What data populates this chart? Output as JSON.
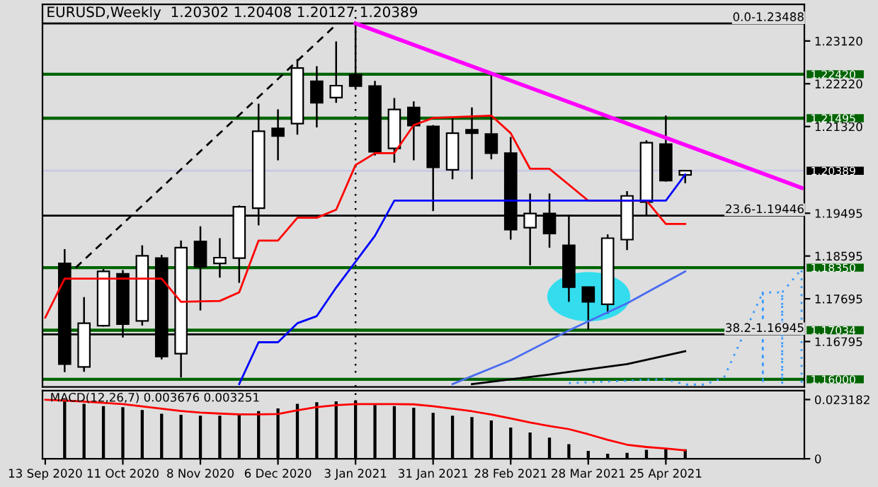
{
  "chart_data": [
    {
      "type": "candlestick",
      "title": "EURUSD,Weekly  1.20302 1.20408 1.20127 1.20389",
      "x": [
        "2020-09-20",
        "2020-09-27",
        "2020-10-04",
        "2020-10-11",
        "2020-10-18",
        "2020-10-25",
        "2020-11-01",
        "2020-11-08",
        "2020-11-15",
        "2020-11-22",
        "2020-11-29",
        "2020-12-06",
        "2020-12-13",
        "2020-12-20",
        "2020-12-27",
        "2021-01-03",
        "2021-01-10",
        "2021-01-17",
        "2021-01-24",
        "2021-01-31",
        "2021-02-07",
        "2021-02-14",
        "2021-02-21",
        "2021-02-28",
        "2021-03-07",
        "2021-03-14",
        "2021-03-21",
        "2021-03-28",
        "2021-04-04",
        "2021-04-11",
        "2021-04-18",
        "2021-04-25",
        "2021-05-02"
      ],
      "ohlc": [
        [
          1.1844,
          1.1874,
          1.1615,
          1.1632
        ],
        [
          1.1626,
          1.1773,
          1.1616,
          1.1718
        ],
        [
          1.1713,
          1.1832,
          1.1711,
          1.1827
        ],
        [
          1.1822,
          1.183,
          1.1688,
          1.1716
        ],
        [
          1.1723,
          1.1882,
          1.1713,
          1.186
        ],
        [
          1.1855,
          1.1862,
          1.1642,
          1.1648
        ],
        [
          1.1654,
          1.1892,
          1.1604,
          1.1877
        ],
        [
          1.189,
          1.1922,
          1.1745,
          1.1837
        ],
        [
          1.1844,
          1.1897,
          1.1814,
          1.1856
        ],
        [
          1.1855,
          1.1966,
          1.1803,
          1.1963
        ],
        [
          1.196,
          1.218,
          1.1924,
          1.2122
        ],
        [
          1.2128,
          1.2168,
          1.2061,
          1.2112
        ],
        [
          1.2138,
          1.2274,
          1.2115,
          1.2255
        ],
        [
          1.2227,
          1.2259,
          1.213,
          1.2182
        ],
        [
          1.2193,
          1.2311,
          1.2182,
          1.2218
        ],
        [
          1.2241,
          1.2349,
          1.221,
          1.2217
        ],
        [
          1.2217,
          1.2228,
          1.2071,
          1.2079
        ],
        [
          1.2086,
          1.2192,
          1.2056,
          1.2168
        ],
        [
          1.2172,
          1.2185,
          1.2061,
          1.2134
        ],
        [
          1.2132,
          1.2135,
          1.1954,
          1.2046
        ],
        [
          1.2041,
          1.2152,
          1.2021,
          1.2118
        ],
        [
          1.2125,
          1.2172,
          1.2021,
          1.2118
        ],
        [
          1.2116,
          1.2243,
          1.2063,
          1.2076
        ],
        [
          1.2076,
          1.211,
          1.1894,
          1.1915
        ],
        [
          1.1919,
          1.1991,
          1.184,
          1.1949
        ],
        [
          1.1949,
          1.1991,
          1.1877,
          1.1907
        ],
        [
          1.1882,
          1.1946,
          1.1763,
          1.1794
        ],
        [
          1.1794,
          1.1795,
          1.1704,
          1.1763
        ],
        [
          1.1758,
          1.1905,
          1.1738,
          1.1897
        ],
        [
          1.1894,
          1.1996,
          1.1872,
          1.1986
        ],
        [
          1.1973,
          1.2103,
          1.1944,
          1.2098
        ],
        [
          1.2095,
          1.2155,
          1.2016,
          1.2018
        ],
        [
          1.20302,
          1.20408,
          1.20127,
          1.20389
        ]
      ],
      "series": [
        {
          "type": "line",
          "color": "#ff0000",
          "x": [
            "2020-09-13",
            "2020-09-20",
            "2020-10-25",
            "2020-11-01",
            "2020-11-15",
            "2020-11-22",
            "2020-11-29",
            "2020-12-06",
            "2020-12-13",
            "2020-12-20",
            "2020-12-27",
            "2021-01-03",
            "2021-01-10",
            "2021-01-17",
            "2021-01-24",
            "2021-01-31",
            "2021-02-21",
            "2021-02-28",
            "2021-03-07",
            "2021-03-14",
            "2021-03-28",
            "2021-04-18",
            "2021-04-25",
            "2021-05-02"
          ],
          "values": [
            1.173,
            1.1812,
            1.1812,
            1.1763,
            1.1765,
            1.1783,
            1.1892,
            1.1892,
            1.194,
            1.194,
            1.1957,
            1.2051,
            1.2076,
            1.2076,
            1.2135,
            1.215,
            1.2155,
            1.2118,
            1.2043,
            1.2043,
            1.1976,
            1.1976,
            1.1927,
            1.1927
          ]
        },
        {
          "type": "line",
          "color": "#0000ff",
          "x": [
            "2020-11-22",
            "2020-11-29",
            "2020-12-06",
            "2020-12-13",
            "2020-12-20",
            "2020-12-27",
            "2021-01-10",
            "2021-01-17",
            "2021-04-25",
            "2021-05-02"
          ],
          "values": [
            1.159,
            1.1678,
            1.1678,
            1.1718,
            1.1733,
            1.1793,
            1.1902,
            1.1976,
            1.1976,
            1.2031
          ]
        },
        {
          "type": "line",
          "color": "#4a6cf0",
          "x": [
            "2021-02-07",
            "2021-02-28",
            "2021-03-21",
            "2021-04-11",
            "2021-05-02"
          ],
          "values": [
            1.159,
            1.164,
            1.1703,
            1.176,
            1.1827
          ]
        },
        {
          "type": "line",
          "color": "#000000",
          "x": [
            "2021-02-14",
            "2021-03-14",
            "2021-04-11",
            "2021-05-02"
          ],
          "values": [
            1.159,
            1.161,
            1.1632,
            1.1659
          ]
        },
        {
          "type": "line",
          "color": "#3399ff",
          "line_style": "dotted",
          "x": [
            "2021-03-21",
            "2021-04-18",
            "2021-04-25",
            "2021-05-02",
            "2021-05-09",
            "2021-05-16",
            "2021-05-23",
            "2021-05-30",
            "2021-05-30",
            "2021-05-30",
            "2021-06-06",
            "2021-06-06",
            "2021-06-06",
            "2021-06-13",
            "2021-06-13"
          ],
          "values": [
            1.1592,
            1.1599,
            1.16,
            1.1589,
            1.1589,
            1.1604,
            1.1693,
            1.1783,
            1.159,
            1.1783,
            1.1783,
            1.159,
            1.1783,
            1.1832,
            1.159
          ]
        },
        {
          "type": "line",
          "color": "#ff00ff",
          "x": [
            "2021-01-03",
            "2021-06-13"
          ],
          "values": [
            1.2349,
            1.2003
          ]
        },
        {
          "type": "line",
          "color": "#000000",
          "line_style": "dashed",
          "x": [
            "2020-09-24",
            "2020-12-26"
          ],
          "values": [
            1.1835,
            1.2341
          ]
        }
      ],
      "xlim": [
        "2020-09-12",
        "2021-06-14"
      ],
      "ylim": [
        1.1584,
        1.2389
      ],
      "yticks": [
        {
          "value": 1.2312,
          "label": "1.23120"
        },
        {
          "value": 1.2222,
          "label": "1.22220"
        },
        {
          "value": 1.2132,
          "label": "1.21320"
        },
        {
          "value": 1.19495,
          "label": "1.19495"
        },
        {
          "value": 1.18595,
          "label": "1.18595"
        },
        {
          "value": 1.17695,
          "label": "1.17695"
        },
        {
          "value": 1.16795,
          "label": "1.16795"
        }
      ],
      "tick_labels": "y",
      "ref_lines": [
        {
          "axis": "x",
          "value": "2021-01-03",
          "color": "#000000",
          "line_style": "dotted"
        },
        {
          "axis": "y",
          "value": 1.2242,
          "label": "1.22420",
          "color": "#006400"
        },
        {
          "axis": "y",
          "value": 1.21495,
          "label": "1.21495",
          "color": "#006400"
        },
        {
          "axis": "y",
          "value": 1.1835,
          "label": "1.18350",
          "color": "#006400"
        },
        {
          "axis": "y",
          "value": 1.17034,
          "label": "1.17034",
          "color": "#006400"
        },
        {
          "axis": "y",
          "value": 1.16,
          "label": "1.16000",
          "color": "#006400"
        },
        {
          "axis": "y",
          "value": 1.20389,
          "label": "1.20389",
          "color": "#c8c8e6"
        },
        {
          "axis": "y",
          "value": 1.23488,
          "color": "#000000"
        },
        {
          "axis": "y",
          "value": 1.19446,
          "color": "#000000"
        },
        {
          "axis": "y",
          "value": 1.16945,
          "color": "#000000"
        }
      ],
      "annotations": [
        "0.0-1.23488",
        "23.6-1.19446",
        "38.2-1.16945"
      ]
    },
    {
      "type": "bar",
      "title": "MACD(12,26,7) 0.003676 0.003251",
      "series": [
        {
          "type": "bar",
          "color": "#000000",
          "x": [
            "2020-09-20",
            "2020-09-27",
            "2020-10-04",
            "2020-10-11",
            "2020-10-18",
            "2020-10-25",
            "2020-11-01",
            "2020-11-08",
            "2020-11-15",
            "2020-11-22",
            "2020-11-29",
            "2020-12-06",
            "2020-12-13",
            "2020-12-20",
            "2020-12-27",
            "2021-01-03",
            "2021-01-10",
            "2021-01-17",
            "2021-01-24",
            "2021-01-31",
            "2021-02-07",
            "2021-02-14",
            "2021-02-21",
            "2021-02-28",
            "2021-03-07",
            "2021-03-14",
            "2021-03-21",
            "2021-03-28",
            "2021-04-04",
            "2021-04-11",
            "2021-04-18",
            "2021-04-25",
            "2021-05-02"
          ],
          "values": [
            0.0225,
            0.0215,
            0.0206,
            0.0202,
            0.0191,
            0.0176,
            0.0172,
            0.0169,
            0.0169,
            0.0176,
            0.0187,
            0.0197,
            0.0215,
            0.0221,
            0.0225,
            0.0228,
            0.021,
            0.0206,
            0.02,
            0.018,
            0.0169,
            0.0163,
            0.015,
            0.0122,
            0.0103,
            0.0083,
            0.0057,
            0.0031,
            0.002,
            0.0023,
            0.0035,
            0.0038,
            0.0037
          ]
        },
        {
          "type": "line",
          "color": "#ff0000",
          "x": [
            "2020-09-13",
            "2020-09-20",
            "2020-09-27",
            "2020-10-04",
            "2020-10-11",
            "2020-10-18",
            "2020-10-25",
            "2020-11-01",
            "2020-11-08",
            "2020-11-15",
            "2020-11-22",
            "2020-11-29",
            "2020-12-06",
            "2020-12-13",
            "2020-12-20",
            "2020-12-27",
            "2021-01-03",
            "2021-01-10",
            "2021-01-17",
            "2021-01-24",
            "2021-01-31",
            "2021-02-07",
            "2021-02-14",
            "2021-02-21",
            "2021-02-28",
            "2021-03-07",
            "2021-03-14",
            "2021-03-21",
            "2021-03-28",
            "2021-04-04",
            "2021-04-11",
            "2021-04-18",
            "2021-04-25",
            "2021-05-02"
          ],
          "values": [
            0.0231,
            0.0228,
            0.0224,
            0.0219,
            0.0214,
            0.0205,
            0.0196,
            0.0187,
            0.0181,
            0.0177,
            0.0174,
            0.0174,
            0.0175,
            0.019,
            0.0202,
            0.021,
            0.0214,
            0.0214,
            0.0214,
            0.0213,
            0.0206,
            0.0196,
            0.0186,
            0.0173,
            0.0158,
            0.0142,
            0.0128,
            0.0116,
            0.0096,
            0.0074,
            0.0055,
            0.0046,
            0.004,
            0.0033
          ]
        }
      ],
      "xlim": [
        "2020-09-12",
        "2021-06-14"
      ],
      "ylim": [
        0,
        0.0267
      ],
      "yticks": [
        {
          "value": 0.023182,
          "label": "0.023182"
        },
        0
      ],
      "xticks": [
        {
          "value": "2020-09-13",
          "label": "13 Sep 2020"
        },
        {
          "value": "2020-10-11",
          "label": "11 Oct 2020"
        },
        {
          "value": "2020-11-08",
          "label": "8 Nov 2020"
        },
        {
          "value": "2020-12-06",
          "label": "6 Dec 2020"
        },
        {
          "value": "2021-01-03",
          "label": "3 Jan 2021"
        },
        {
          "value": "2021-01-31",
          "label": "31 Jan 2021"
        },
        {
          "value": "2021-02-28",
          "label": "28 Feb 2021"
        },
        {
          "value": "2021-03-28",
          "label": "28 Mar 2021"
        },
        {
          "value": "2021-04-25",
          "label": "25 Apr 2021"
        }
      ],
      "ref_lines": [
        {
          "axis": "x",
          "value": "2021-01-03",
          "color": "#000000",
          "line_style": "dotted"
        }
      ]
    }
  ]
}
